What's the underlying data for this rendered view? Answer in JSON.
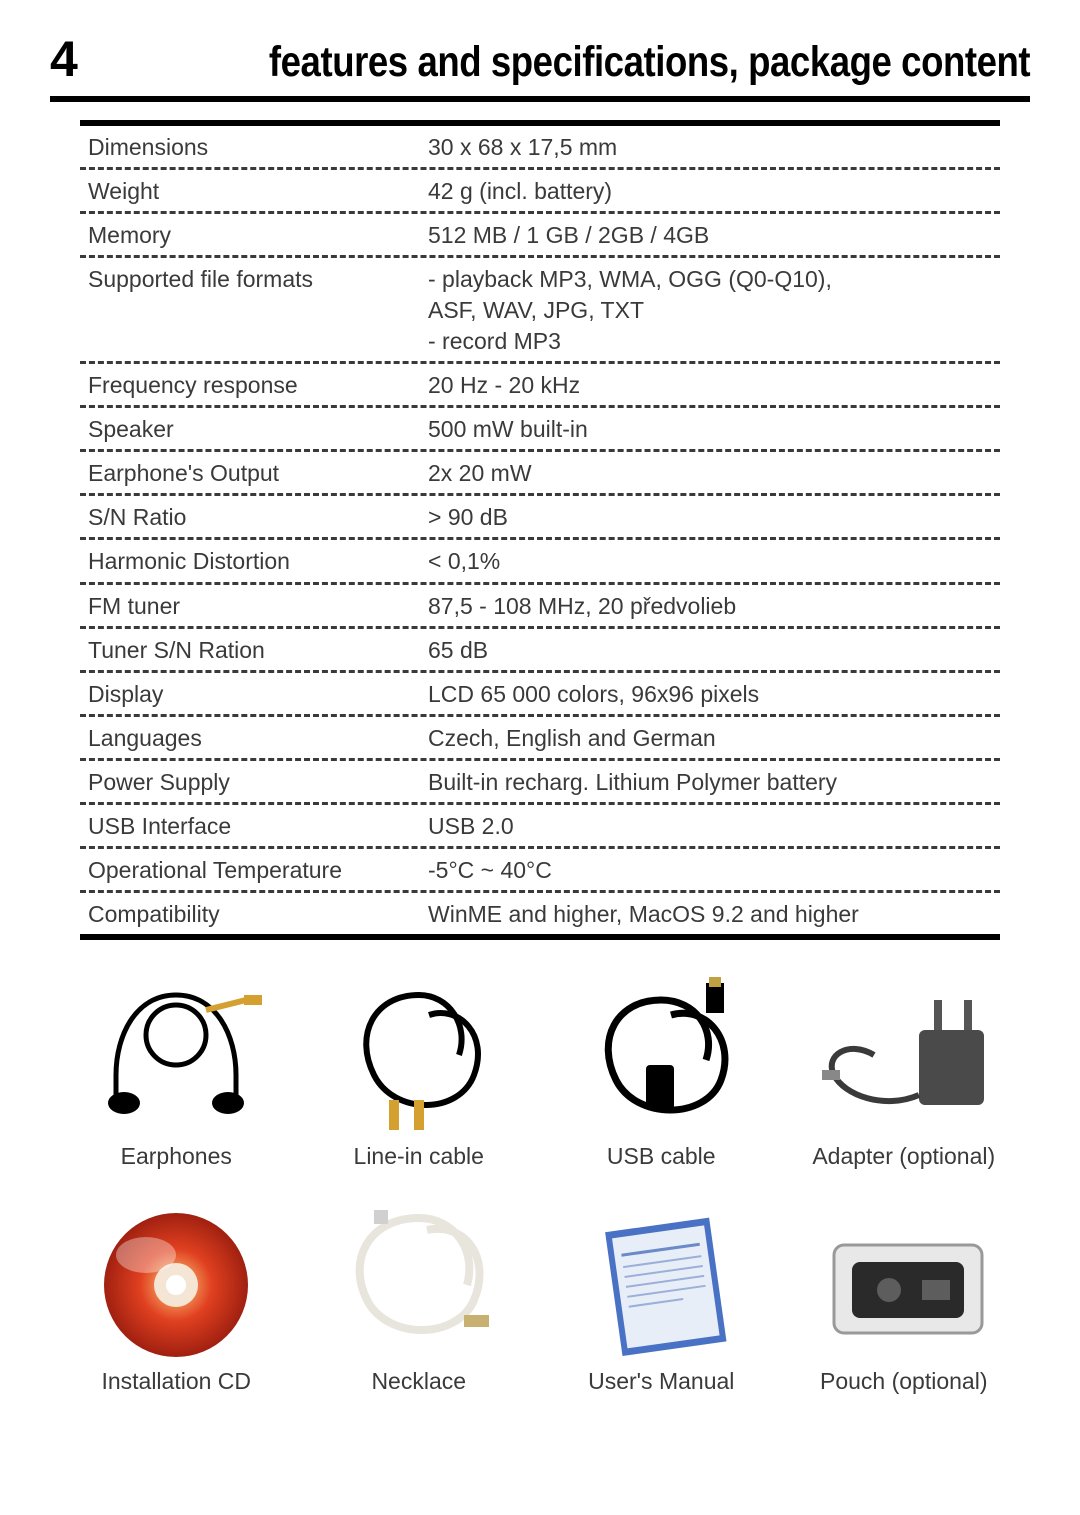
{
  "page_number": "4",
  "page_title": "features and specifications, package content",
  "colors": {
    "text": "#3a3a3a",
    "rule": "#000000",
    "background": "#ffffff"
  },
  "spec_rows": [
    {
      "label": "Dimensions",
      "value": "30 x 68 x 17,5 mm"
    },
    {
      "label": "Weight",
      "value": "42 g (incl. battery)"
    },
    {
      "label": "Memory",
      "value": "512 MB / 1 GB / 2GB / 4GB"
    },
    {
      "label": "Supported file formats",
      "value": "- playback MP3, WMA, OGG (Q0-Q10),\nASF, WAV, JPG, TXT\n- record MP3"
    },
    {
      "label": "Frequency response",
      "value": "20 Hz - 20 kHz"
    },
    {
      "label": "Speaker",
      "value": "500 mW built-in"
    },
    {
      "label": "Earphone's Output",
      "value": "2x 20 mW"
    },
    {
      "label": "S/N Ratio",
      "value": "> 90 dB"
    },
    {
      "label": "Harmonic Distortion",
      "value": "< 0,1%"
    },
    {
      "label": "FM tuner",
      "value": "87,5 - 108 MHz, 20 předvolieb"
    },
    {
      "label": "Tuner S/N Ration",
      "value": "65 dB"
    },
    {
      "label": "Display",
      "value": "LCD 65 000 colors, 96x96 pixels"
    },
    {
      "label": "Languages",
      "value": "Czech, English and German"
    },
    {
      "label": "Power Supply",
      "value": "Built-in recharg. Lithium Polymer battery"
    },
    {
      "label": "USB Interface",
      "value": "USB 2.0"
    },
    {
      "label": "Operational Temperature",
      "value": "-5°C ~ 40°C"
    },
    {
      "label": "Compatibility",
      "value": "WinME and higher, MacOS 9.2 and higher"
    }
  ],
  "package_items": [
    {
      "label": "Earphones",
      "icon": "earphones"
    },
    {
      "label": "Line-in cable",
      "icon": "linein"
    },
    {
      "label": "USB cable",
      "icon": "usb"
    },
    {
      "label": "Adapter (optional)",
      "icon": "adapter"
    },
    {
      "label": "Installation CD",
      "icon": "cd"
    },
    {
      "label": "Necklace",
      "icon": "necklace"
    },
    {
      "label": "User's Manual",
      "icon": "manual"
    },
    {
      "label": "Pouch (optional)",
      "icon": "pouch"
    }
  ]
}
